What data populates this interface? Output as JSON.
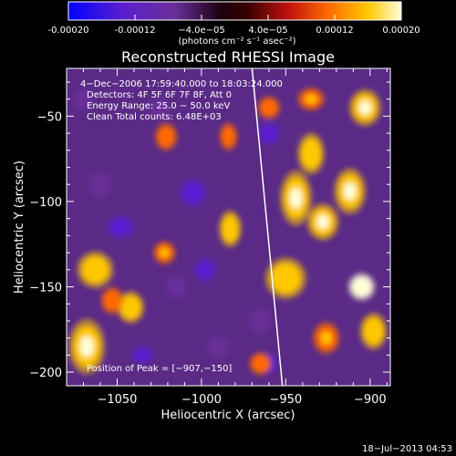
{
  "chart_data": {
    "type": "heatmap",
    "title": "Reconstructed RHESSI Image",
    "xlabel": "Heliocentric X (arcsec)",
    "ylabel": "Heliocentric Y (arcsec)",
    "xlim": [
      -1080,
      -888
    ],
    "ylim": [
      -208,
      -22
    ],
    "x_ticks": [
      -1050,
      -1000,
      -950,
      -900
    ],
    "x_tick_labels": [
      "−1050",
      "−1000",
      "−950",
      "−900"
    ],
    "y_ticks": [
      -50,
      -100,
      -150,
      -200
    ],
    "y_tick_labels": [
      "−50",
      "−100",
      "−150",
      "−200"
    ],
    "colorbar": {
      "range": [
        -0.0002,
        0.0002
      ],
      "ticks": [
        -0.0002,
        -0.00012,
        -4e-05,
        4e-05,
        0.00012,
        0.0002
      ],
      "tick_labels": [
        "-0.00020",
        "-0.00012",
        "−4.0e−05",
        "4.0e−05",
        "0.00012",
        "0.00020"
      ],
      "units_label": "(photons cm⁻² s⁻¹ asec⁻²)",
      "colors": [
        "#0000ff",
        "#5a1fd0",
        "#6b2f9a",
        "#000000",
        "#c01010",
        "#ff6a00",
        "#ffc800",
        "#ffffd8"
      ]
    },
    "annotations": [
      "4−Dec−2006 17:59:40.000 to 18:03:24.000",
      "Detectors: 4F 5F 6F 7F 8F, Att 0",
      "Energy Range: 25.0 − 50.0 keV",
      "Clean     Total counts: 6.48E+03"
    ],
    "peak_label": "Position of Peak = [−907,−150]",
    "peak": [
      -907,
      -150
    ],
    "limb_line": [
      [
        -970,
        -22
      ],
      [
        -952,
        -208
      ]
    ],
    "hot_spots": [
      {
        "x": -1068,
        "y": -185,
        "value": 0.00014,
        "sx": 8,
        "sy": 12
      },
      {
        "x": -1063,
        "y": -140,
        "value": 0.00012,
        "sx": 8,
        "sy": 8
      },
      {
        "x": -1042,
        "y": -162,
        "value": 0.00013,
        "sx": 6,
        "sy": 7
      },
      {
        "x": -1053,
        "y": -158,
        "value": 9e-05,
        "sx": 5,
        "sy": 6
      },
      {
        "x": -1022,
        "y": -130,
        "value": 0.0001,
        "sx": 5,
        "sy": 5
      },
      {
        "x": -1021,
        "y": -62,
        "value": 8e-05,
        "sx": 5,
        "sy": 6
      },
      {
        "x": -983,
        "y": -116,
        "value": 0.00013,
        "sx": 5,
        "sy": 8
      },
      {
        "x": -984,
        "y": -62,
        "value": 8e-05,
        "sx": 4,
        "sy": 6
      },
      {
        "x": -965,
        "y": -195,
        "value": 6e-05,
        "sx": 5,
        "sy": 5
      },
      {
        "x": -950,
        "y": -145,
        "value": 0.00012,
        "sx": 9,
        "sy": 9
      },
      {
        "x": -944,
        "y": -98,
        "value": 0.00016,
        "sx": 7,
        "sy": 12
      },
      {
        "x": -935,
        "y": -72,
        "value": 0.00013,
        "sx": 6,
        "sy": 9
      },
      {
        "x": -928,
        "y": -112,
        "value": 0.00017,
        "sx": 7,
        "sy": 8
      },
      {
        "x": -926,
        "y": -180,
        "value": 0.00011,
        "sx": 6,
        "sy": 7
      },
      {
        "x": -912,
        "y": -94,
        "value": 0.00016,
        "sx": 7,
        "sy": 10
      },
      {
        "x": -905,
        "y": -150,
        "value": 0.0002,
        "sx": 6,
        "sy": 6
      },
      {
        "x": -903,
        "y": -45,
        "value": 0.00015,
        "sx": 7,
        "sy": 8
      },
      {
        "x": -898,
        "y": -176,
        "value": 0.00012,
        "sx": 6,
        "sy": 8
      },
      {
        "x": -935,
        "y": -40,
        "value": 0.00011,
        "sx": 6,
        "sy": 5
      },
      {
        "x": -960,
        "y": -45,
        "value": 7e-05,
        "sx": 5,
        "sy": 5
      }
    ],
    "cold_spots": [
      {
        "x": -1048,
        "y": -115,
        "value": -0.00012,
        "sx": 6,
        "sy": 5
      },
      {
        "x": -1005,
        "y": -95,
        "value": -0.00012,
        "sx": 6,
        "sy": 6
      },
      {
        "x": -1015,
        "y": -150,
        "value": -0.0001,
        "sx": 5,
        "sy": 5
      },
      {
        "x": -998,
        "y": -140,
        "value": -0.00015,
        "sx": 5,
        "sy": 5
      },
      {
        "x": -990,
        "y": -185,
        "value": -0.0001,
        "sx": 5,
        "sy": 5
      },
      {
        "x": -960,
        "y": -195,
        "value": -0.00016,
        "sx": 4,
        "sy": 5
      },
      {
        "x": -1035,
        "y": -190,
        "value": -0.00012,
        "sx": 5,
        "sy": 4
      },
      {
        "x": -1060,
        "y": -90,
        "value": -0.00011,
        "sx": 5,
        "sy": 6
      },
      {
        "x": -1070,
        "y": -40,
        "value": -0.0001,
        "sx": 5,
        "sy": 5
      },
      {
        "x": -960,
        "y": -60,
        "value": -0.00013,
        "sx": 5,
        "sy": 5
      },
      {
        "x": -965,
        "y": -170,
        "value": -0.0001,
        "sx": 5,
        "sy": 6
      },
      {
        "x": -1025,
        "y": -45,
        "value": -9e-05,
        "sx": 5,
        "sy": 5
      }
    ]
  },
  "footer": {
    "timestamp": "18−Jul−2013 04:53"
  }
}
